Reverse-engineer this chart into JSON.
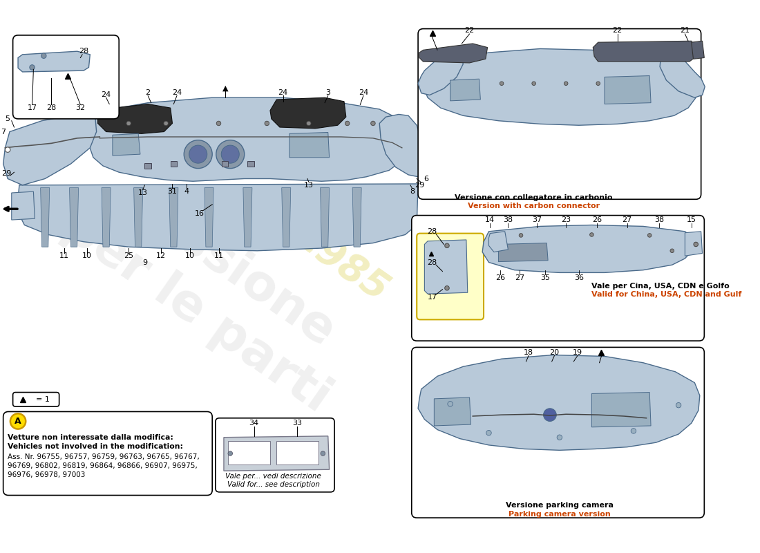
{
  "bg_color": "#ffffff",
  "part_color": "#b8c9d9",
  "part_edge_color": "#4a6a8a",
  "dark_part_color": "#2a2a2a",
  "watermark_lines": [
    "passione",
    "per le parti"
  ],
  "watermark_year": "1985",
  "note_text_it": "Vetture non interessate dalla modifica:",
  "note_text_en": "Vehicles not involved in the modification:",
  "ass_line1": "Ass. Nr. 96755, 96757, 96759, 96763, 96765, 96767,",
  "ass_line2": "96769, 96802, 96819, 96864, 96866, 96907, 96975,",
  "ass_line3": "96976, 96978, 97003",
  "carbon_text_it": "Versione con collegatore in carbonio",
  "carbon_text_en": "Version with carbon connector",
  "valid_text_it": "Vale per Cina, USA, CDN e Golfo",
  "valid_text_en": "Valid for China, USA, CDN and Gulf",
  "valid2_text_it": "Vale per... vedi descrizione",
  "valid2_text_en": "Valid for... see description",
  "parking_text_it": "Versione parking camera",
  "parking_text_en": "Parking camera version"
}
